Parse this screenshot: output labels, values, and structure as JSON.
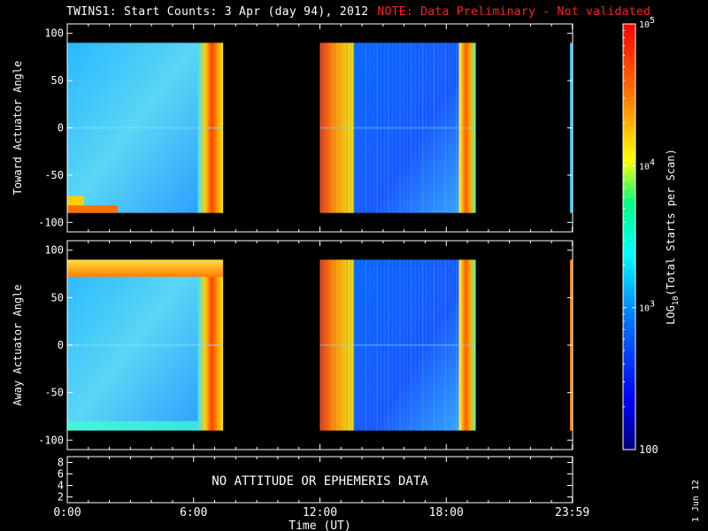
{
  "header": {
    "title": "TWINS1: Start Counts:  3 Apr (day  94), 2012",
    "note": "NOTE: Data Preliminary - Not validated"
  },
  "footer": {
    "date_stamp": "1 Jun 12"
  },
  "chart_data": [
    {
      "type": "heatmap",
      "panel": "top",
      "ylabel": "Toward Actuator Angle",
      "ylim": [
        -110,
        110
      ],
      "y_ticks": [
        "100",
        "50",
        "0",
        "-50",
        "-100"
      ],
      "y_tick_values": [
        100,
        50,
        0,
        -50,
        -100
      ],
      "data_y_range": [
        -90,
        90
      ],
      "xlim_hours": [
        0,
        24
      ],
      "grid": false,
      "data_intervals_hours": [
        [
          0,
          7.4
        ],
        [
          12,
          19.4
        ]
      ],
      "colored_bands": [
        {
          "t0": 0.0,
          "t1": 6.2,
          "level": "low-blue/cyan"
        },
        {
          "t0": 6.2,
          "t1": 7.4,
          "level": "high-yellow/red"
        },
        {
          "t0": 12.0,
          "t1": 13.6,
          "level": "high-red/orange"
        },
        {
          "t0": 13.6,
          "t1": 18.6,
          "level": "low-blue"
        },
        {
          "t0": 18.6,
          "t1": 19.4,
          "level": "high-yellow/orange"
        }
      ]
    },
    {
      "type": "heatmap",
      "panel": "middle",
      "ylabel": "Away Actuator Angle",
      "ylim": [
        -110,
        110
      ],
      "y_ticks": [
        "100",
        "50",
        "0",
        "-50",
        "-100"
      ],
      "y_tick_values": [
        100,
        50,
        0,
        -50,
        -100
      ],
      "data_y_range": [
        -90,
        90
      ],
      "xlim_hours": [
        0,
        24
      ],
      "grid": false,
      "data_intervals_hours": [
        [
          0,
          7.4
        ],
        [
          12,
          19.4
        ]
      ],
      "colored_bands": [
        {
          "t0": 0.0,
          "t1": 6.2,
          "level": "low-blue/cyan"
        },
        {
          "t0": 6.2,
          "t1": 7.4,
          "level": "high-yellow/red"
        },
        {
          "t0": 12.0,
          "t1": 13.6,
          "level": "high-red/orange"
        },
        {
          "t0": 13.6,
          "t1": 18.6,
          "level": "low-blue"
        },
        {
          "t0": 18.6,
          "t1": 19.4,
          "level": "high-yellow/orange"
        }
      ]
    },
    {
      "type": "table",
      "panel": "bottom",
      "ylim": [
        1,
        9
      ],
      "y_ticks": [
        "8",
        "6",
        "4",
        "2"
      ],
      "y_tick_values": [
        8,
        6,
        4,
        2
      ],
      "message": "NO ATTITUDE OR EPHEMERIS DATA",
      "x_ticks": [
        "0:00",
        "6:00",
        "12:00",
        "18:00",
        "23:59"
      ],
      "x_tick_hours": [
        0,
        6,
        12,
        18,
        23.983
      ],
      "xlabel": "Time (UT)",
      "xlim_hours": [
        0,
        24
      ]
    },
    {
      "type": "colorbar",
      "scale": "log",
      "range": [
        100,
        100000
      ],
      "tick_labels": [
        {
          "value": 100000,
          "label": "10",
          "exp": "5"
        },
        {
          "value": 10000,
          "label": "10",
          "exp": "4"
        },
        {
          "value": 1000,
          "label": "10",
          "exp": "3"
        },
        {
          "value": 100,
          "label": "100",
          "exp": ""
        }
      ],
      "label_main": "LOG",
      "label_sub": "10",
      "label_rest": "(Total Starts per Scan)",
      "colors": [
        "#ff0000",
        "#ff8000",
        "#ffff00",
        "#00ff80",
        "#00ffff",
        "#0080ff",
        "#0000ff",
        "#000080"
      ]
    }
  ]
}
